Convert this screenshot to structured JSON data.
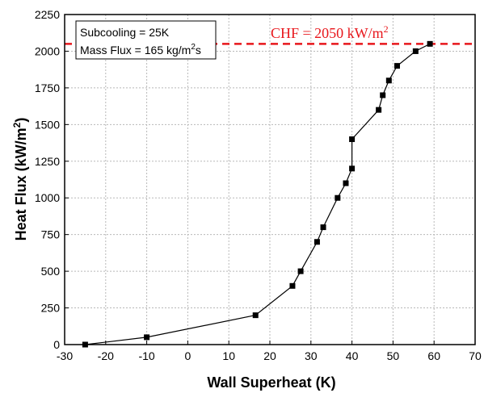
{
  "chart_data": {
    "type": "line",
    "xlabel": "Wall Superheat (K)",
    "ylabel_main": "Heat Flux (kW/m",
    "ylabel_sup": "2",
    "ylabel_end": ")",
    "xlim": [
      -30,
      70
    ],
    "ylim": [
      0,
      2250
    ],
    "xticks": [
      -30,
      -20,
      -10,
      0,
      10,
      20,
      30,
      40,
      50,
      60,
      70
    ],
    "yticks": [
      0,
      250,
      500,
      750,
      1000,
      1250,
      1500,
      1750,
      2000,
      2250
    ],
    "grid": true,
    "legend_box": {
      "placement": "top-left",
      "line1": "Subcooling = 25K",
      "line2_main": "Mass Flux = 165 kg/m",
      "line2_sup": "2",
      "line2_end": "s"
    },
    "series": [
      {
        "color": "#000000",
        "marker": "square",
        "points": [
          [
            -25,
            0
          ],
          [
            -10,
            50
          ],
          [
            16.5,
            200
          ],
          [
            25.5,
            400
          ],
          [
            27.5,
            500
          ],
          [
            31.5,
            700
          ],
          [
            33,
            800
          ],
          [
            36.5,
            1000
          ],
          [
            38.5,
            1100
          ],
          [
            40,
            1200
          ],
          [
            40,
            1400
          ],
          [
            46.5,
            1600
          ],
          [
            47.5,
            1700
          ],
          [
            49,
            1800
          ],
          [
            51,
            1900
          ],
          [
            55.5,
            2000
          ],
          [
            59,
            2050
          ]
        ]
      }
    ],
    "reference_line": {
      "y": 2050,
      "color": "#e8161b",
      "style": "dashed",
      "label_main": "CHF = 2050 kW/m",
      "label_sup": "2"
    }
  }
}
